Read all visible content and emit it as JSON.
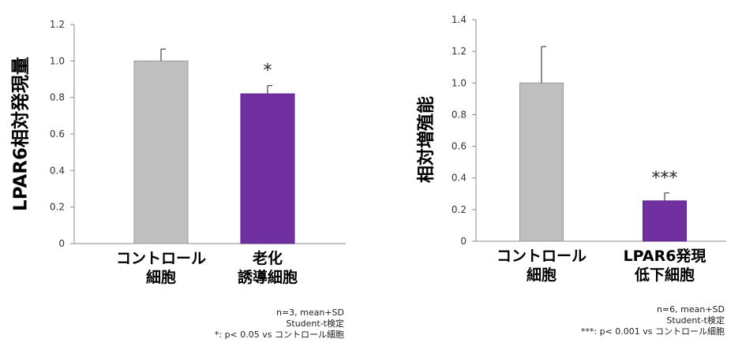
{
  "chart_data": [
    {
      "type": "bar",
      "categories": [
        [
          "コントロール",
          "細胞"
        ],
        [
          "老化",
          "誘導細胞"
        ]
      ],
      "values": [
        1.0,
        0.82
      ],
      "errors": [
        0.065,
        0.045
      ],
      "bar_colors": [
        "#bfbfbf",
        "#7030a0"
      ],
      "significance": [
        "",
        "*"
      ],
      "ylabel": "LPAR6相対発現量",
      "ylim": [
        0,
        1.2
      ],
      "yticks": [
        "0",
        "0.2",
        "0.4",
        "0.6",
        "0.8",
        "1.0",
        "1.2"
      ],
      "grid": false,
      "notes": [
        "n=3, mean+SD",
        "Student-t検定",
        "*: p< 0.05 vs コントロール細胞"
      ]
    },
    {
      "type": "bar",
      "categories": [
        [
          "コントロール",
          "細胞"
        ],
        [
          "LPAR6発現",
          "低下細胞"
        ]
      ],
      "values": [
        1.0,
        0.255
      ],
      "errors": [
        0.23,
        0.05
      ],
      "bar_colors": [
        "#bfbfbf",
        "#7030a0"
      ],
      "significance": [
        "",
        "***"
      ],
      "ylabel": "相対増殖能",
      "ylim": [
        0,
        1.4
      ],
      "yticks": [
        "0",
        "0.2",
        "0.4",
        "0.6",
        "0.8",
        "1.0",
        "1.2",
        "1.4"
      ],
      "grid": false,
      "notes": [
        "n=6, mean+SD",
        "Student-t検定",
        "***: p< 0.001 vs コントロール細胞"
      ]
    }
  ]
}
